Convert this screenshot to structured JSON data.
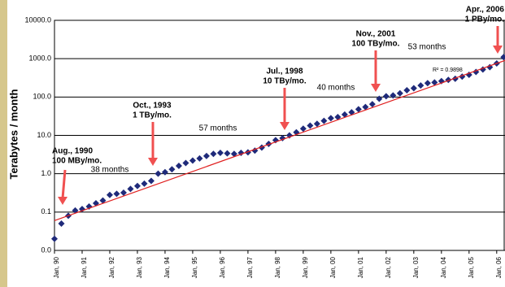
{
  "chart_data": {
    "type": "scatter",
    "ylabel": "Terabytes / month",
    "log_y": true,
    "grid": true,
    "ylim": [
      0.01,
      10000
    ],
    "yticks": [
      {
        "value": 0.01,
        "label": "0.0"
      },
      0.1,
      {
        "value": 1,
        "label": "1.0"
      },
      {
        "value": 10,
        "label": "10.0"
      },
      {
        "value": 100,
        "label": "100.0"
      },
      {
        "value": 1000,
        "label": "1000.0"
      },
      {
        "value": 10000,
        "label": "10000.0"
      }
    ],
    "xlim": [
      1990,
      2006.3
    ],
    "xticks": [
      {
        "value": 1990,
        "label": "Jan, 90"
      },
      {
        "value": 1991,
        "label": "Jan, 91"
      },
      {
        "value": 1992,
        "label": "Jan, 92"
      },
      {
        "value": 1993,
        "label": "Jan, 93"
      },
      {
        "value": 1994,
        "label": "Jan, 94"
      },
      {
        "value": 1995,
        "label": "Jan, 95"
      },
      {
        "value": 1996,
        "label": "Jan, 96"
      },
      {
        "value": 1997,
        "label": "Jan, 97"
      },
      {
        "value": 1998,
        "label": "Jan, 98"
      },
      {
        "value": 1999,
        "label": "Jan, 99"
      },
      {
        "value": 2000,
        "label": "Jan, 00"
      },
      {
        "value": 2001,
        "label": "Jan, 01"
      },
      {
        "value": 2002,
        "label": "Jan, 02"
      },
      {
        "value": 2003,
        "label": "Jan, 03"
      },
      {
        "value": 2004,
        "label": "Jan, 04"
      },
      {
        "value": 2005,
        "label": "Jan, 05"
      },
      {
        "value": 2006,
        "label": "Jan, 06"
      }
    ],
    "color": "#1f2a7a",
    "x": [
      1990.0,
      1990.25,
      1990.5,
      1990.75,
      1991.0,
      1991.25,
      1991.5,
      1991.75,
      1992.0,
      1992.25,
      1992.5,
      1992.75,
      1993.0,
      1993.25,
      1993.5,
      1993.75,
      1994.0,
      1994.25,
      1994.5,
      1994.75,
      1995.0,
      1995.25,
      1995.5,
      1995.75,
      1996.0,
      1996.25,
      1996.5,
      1996.75,
      1997.0,
      1997.25,
      1997.5,
      1997.75,
      1998.0,
      1998.25,
      1998.5,
      1998.75,
      1999.0,
      1999.25,
      1999.5,
      1999.75,
      2000.0,
      2000.25,
      2000.5,
      2000.75,
      2001.0,
      2001.25,
      2001.5,
      2001.75,
      2002.0,
      2002.25,
      2002.5,
      2002.75,
      2003.0,
      2003.25,
      2003.5,
      2003.75,
      2004.0,
      2004.25,
      2004.5,
      2004.75,
      2005.0,
      2005.25,
      2005.5,
      2005.75,
      2006.0,
      2006.25
    ],
    "values": [
      0.02,
      0.05,
      0.08,
      0.11,
      0.12,
      0.14,
      0.17,
      0.2,
      0.28,
      0.3,
      0.32,
      0.4,
      0.48,
      0.55,
      0.65,
      1.0,
      1.1,
      1.3,
      1.6,
      1.9,
      2.2,
      2.5,
      2.9,
      3.3,
      3.5,
      3.4,
      3.3,
      3.5,
      3.6,
      4.0,
      4.8,
      6.0,
      7.5,
      8.5,
      10,
      12,
      15,
      18,
      20,
      24,
      28,
      30,
      35,
      40,
      48,
      55,
      65,
      90,
      105,
      110,
      125,
      150,
      170,
      200,
      230,
      240,
      260,
      280,
      300,
      340,
      380,
      450,
      520,
      600,
      750,
      1100
    ],
    "trend": {
      "x": [
        1990,
        2006.3
      ],
      "values": [
        0.06,
        900
      ],
      "color": "#e02020"
    },
    "r_squared": "R² = 0.9898",
    "annotations": [
      {
        "lines": [
          "Aug., 1990",
          "100 MBy/mo."
        ]
      },
      {
        "lines": [
          "Oct., 1993",
          "1 TBy/mo."
        ]
      },
      {
        "lines": [
          "Jul., 1998",
          "10 TBy/mo."
        ]
      },
      {
        "lines": [
          "Nov., 2001",
          "100 TBy/mo."
        ]
      },
      {
        "lines": [
          "Apr., 2006",
          "1 PBy/mo."
        ]
      }
    ],
    "durations": [
      "38 months",
      "57 months",
      "40 months",
      "53 months"
    ]
  }
}
